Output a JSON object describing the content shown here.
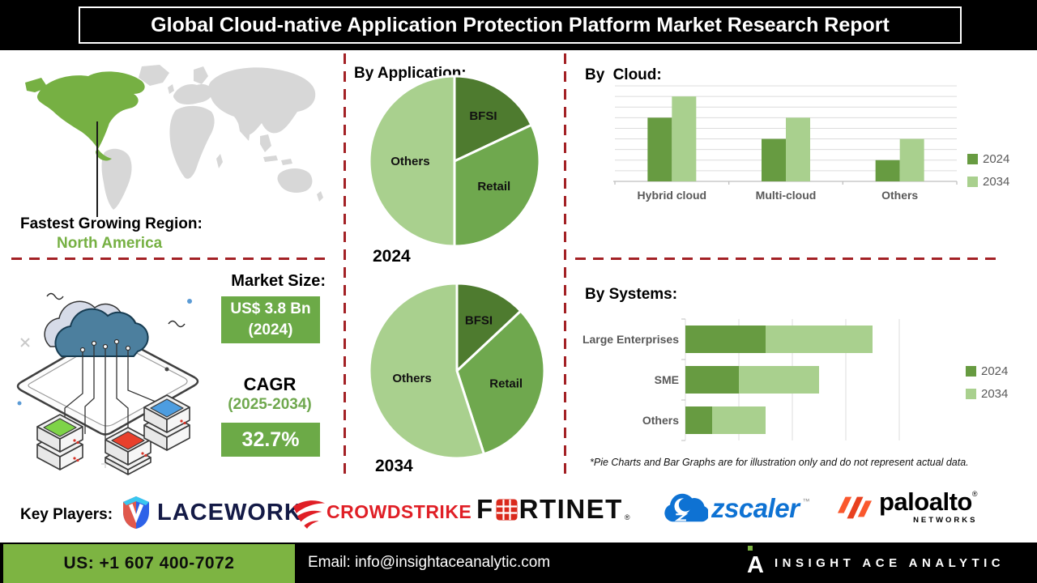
{
  "header": {
    "title": "Global Cloud-native Application Protection Platform Market Research Report"
  },
  "map": {
    "region_label": "Fastest Growing Region:",
    "region_value": "North America"
  },
  "sections": {
    "application": "By Application:",
    "cloud": "By Cloud:",
    "systems": "By Systems:"
  },
  "market": {
    "size_label": "Market Size:",
    "size_value": "US$ 3.8 Bn",
    "size_year": "(2024)",
    "cagr_label": "CAGR",
    "cagr_period": "(2025-2034)",
    "cagr_value": "32.7%"
  },
  "disclaimer": "*Pie Charts and Bar Graphs are for illustration only and do not represent actual data.",
  "key_players": {
    "label": "Key Players:",
    "companies": [
      {
        "name": "Lacework",
        "display": "LACEWORK"
      },
      {
        "name": "CrowdStrike",
        "display": "CROWDSTRIKE"
      },
      {
        "name": "Fortinet",
        "display_left": "F",
        "display_right": "RTINET",
        "reg": "®"
      },
      {
        "name": "Zscaler",
        "display": "zscaler",
        "tm": "™"
      },
      {
        "name": "Palo Alto Networks",
        "display": "paloalto",
        "reg": "®",
        "display_sub": "NETWORKS"
      }
    ]
  },
  "footer": {
    "phone": "US: +1 607 400-7072",
    "email": "Email: info@insightaceanalytic.com",
    "brand": "INSIGHT ACE ANALYTIC",
    "brand_mark": "A"
  },
  "colors": {
    "dash_red": "#a32125",
    "map_green": "#76b043",
    "box_green": "#6caa47",
    "mid_green": "#6fa84e",
    "footer_green": "#7db442",
    "lacework_navy": "#141a46",
    "crowdstrike_red": "#e01f26",
    "fortinet_red": "#da291c",
    "zscaler_blue": "#0e72d3",
    "paloalto_orange": "#fa582d",
    "series_2024": "#679b41",
    "series_2034": "#a9d08e"
  },
  "chart_data": [
    {
      "id": "by_application_2024",
      "type": "pie",
      "title": "By Application:",
      "year_label": "2024",
      "labels": [
        "BFSI",
        "Retail",
        "Others"
      ],
      "values": [
        18,
        32,
        50
      ],
      "colors": [
        "#4e7b2f",
        "#6fa84e",
        "#a9d08e"
      ],
      "label_radius": [
        0.63,
        0.55,
        0.52
      ],
      "note": "illustrative percentages estimated from slice angles"
    },
    {
      "id": "by_application_2034",
      "type": "pie",
      "title": "By Application:",
      "year_label": "2034",
      "labels": [
        "BFSI",
        "Retail",
        "Others"
      ],
      "values": [
        13,
        32,
        55
      ],
      "colors": [
        "#4e7b2f",
        "#6fa84e",
        "#a9d08e"
      ],
      "label_radius": [
        0.63,
        0.58,
        0.52
      ],
      "note": "illustrative percentages estimated from slice angles"
    },
    {
      "id": "by_cloud",
      "type": "bar",
      "title": "By Cloud:",
      "categories": [
        "Hybrid cloud",
        "Multi-cloud",
        "Others"
      ],
      "series": [
        {
          "name": "2024",
          "values": [
            3,
            2,
            1
          ],
          "color": "#679b41"
        },
        {
          "name": "2034",
          "values": [
            4,
            3,
            2
          ],
          "color": "#a9d08e"
        }
      ],
      "ylim": [
        0,
        4.5
      ],
      "gridlines": 9,
      "legend_position": "right",
      "units": "relative (illustrative)"
    },
    {
      "id": "by_systems",
      "type": "bar-horizontal-stacked",
      "title": "By Systems:",
      "categories": [
        "Large Enterprises",
        "SME",
        "Others"
      ],
      "series": [
        {
          "name": "2024",
          "values": [
            1.5,
            1.0,
            0.5
          ],
          "color": "#679b41"
        },
        {
          "name": "2034",
          "values": [
            2.0,
            1.5,
            1.0
          ],
          "color": "#a9d08e"
        }
      ],
      "xlim": [
        0,
        4
      ],
      "gridlines": 5,
      "legend_position": "right",
      "units": "relative (illustrative)"
    }
  ]
}
